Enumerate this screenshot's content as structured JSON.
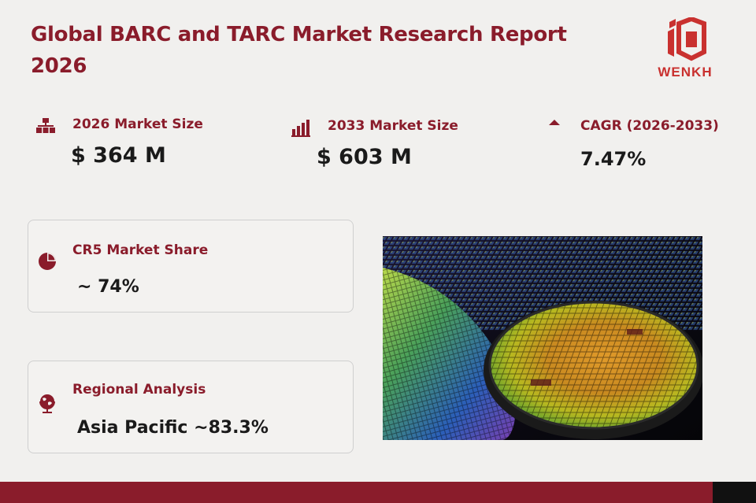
{
  "report": {
    "title": "Global BARC and TARC Market Research Report 2026"
  },
  "brand": {
    "logo_text": "WENKH",
    "color": "#c9312f"
  },
  "stats": [
    {
      "label": "2026 Market Size",
      "value": "$ 364 M",
      "icon": "hierarchy-icon"
    },
    {
      "label": "2033 Market Size",
      "value": "$ 603 M",
      "icon": "bar-chart-icon"
    },
    {
      "label": "CAGR (2026-2033)",
      "value": "7.47%",
      "icon": "triangle-up-icon"
    }
  ],
  "cards": [
    {
      "label": "CR5 Market Share",
      "value": "~ 74%",
      "icon": "pie-chart-icon"
    },
    {
      "label": "Regional Analysis",
      "value": "Asia Pacific ~83.3%",
      "icon": "globe-icon"
    }
  ],
  "image": {
    "icon": "semiconductor-wafer-photo"
  },
  "colors": {
    "accent": "#8a1c2b",
    "background": "#f1f0ee",
    "text": "#1a1a1a"
  }
}
